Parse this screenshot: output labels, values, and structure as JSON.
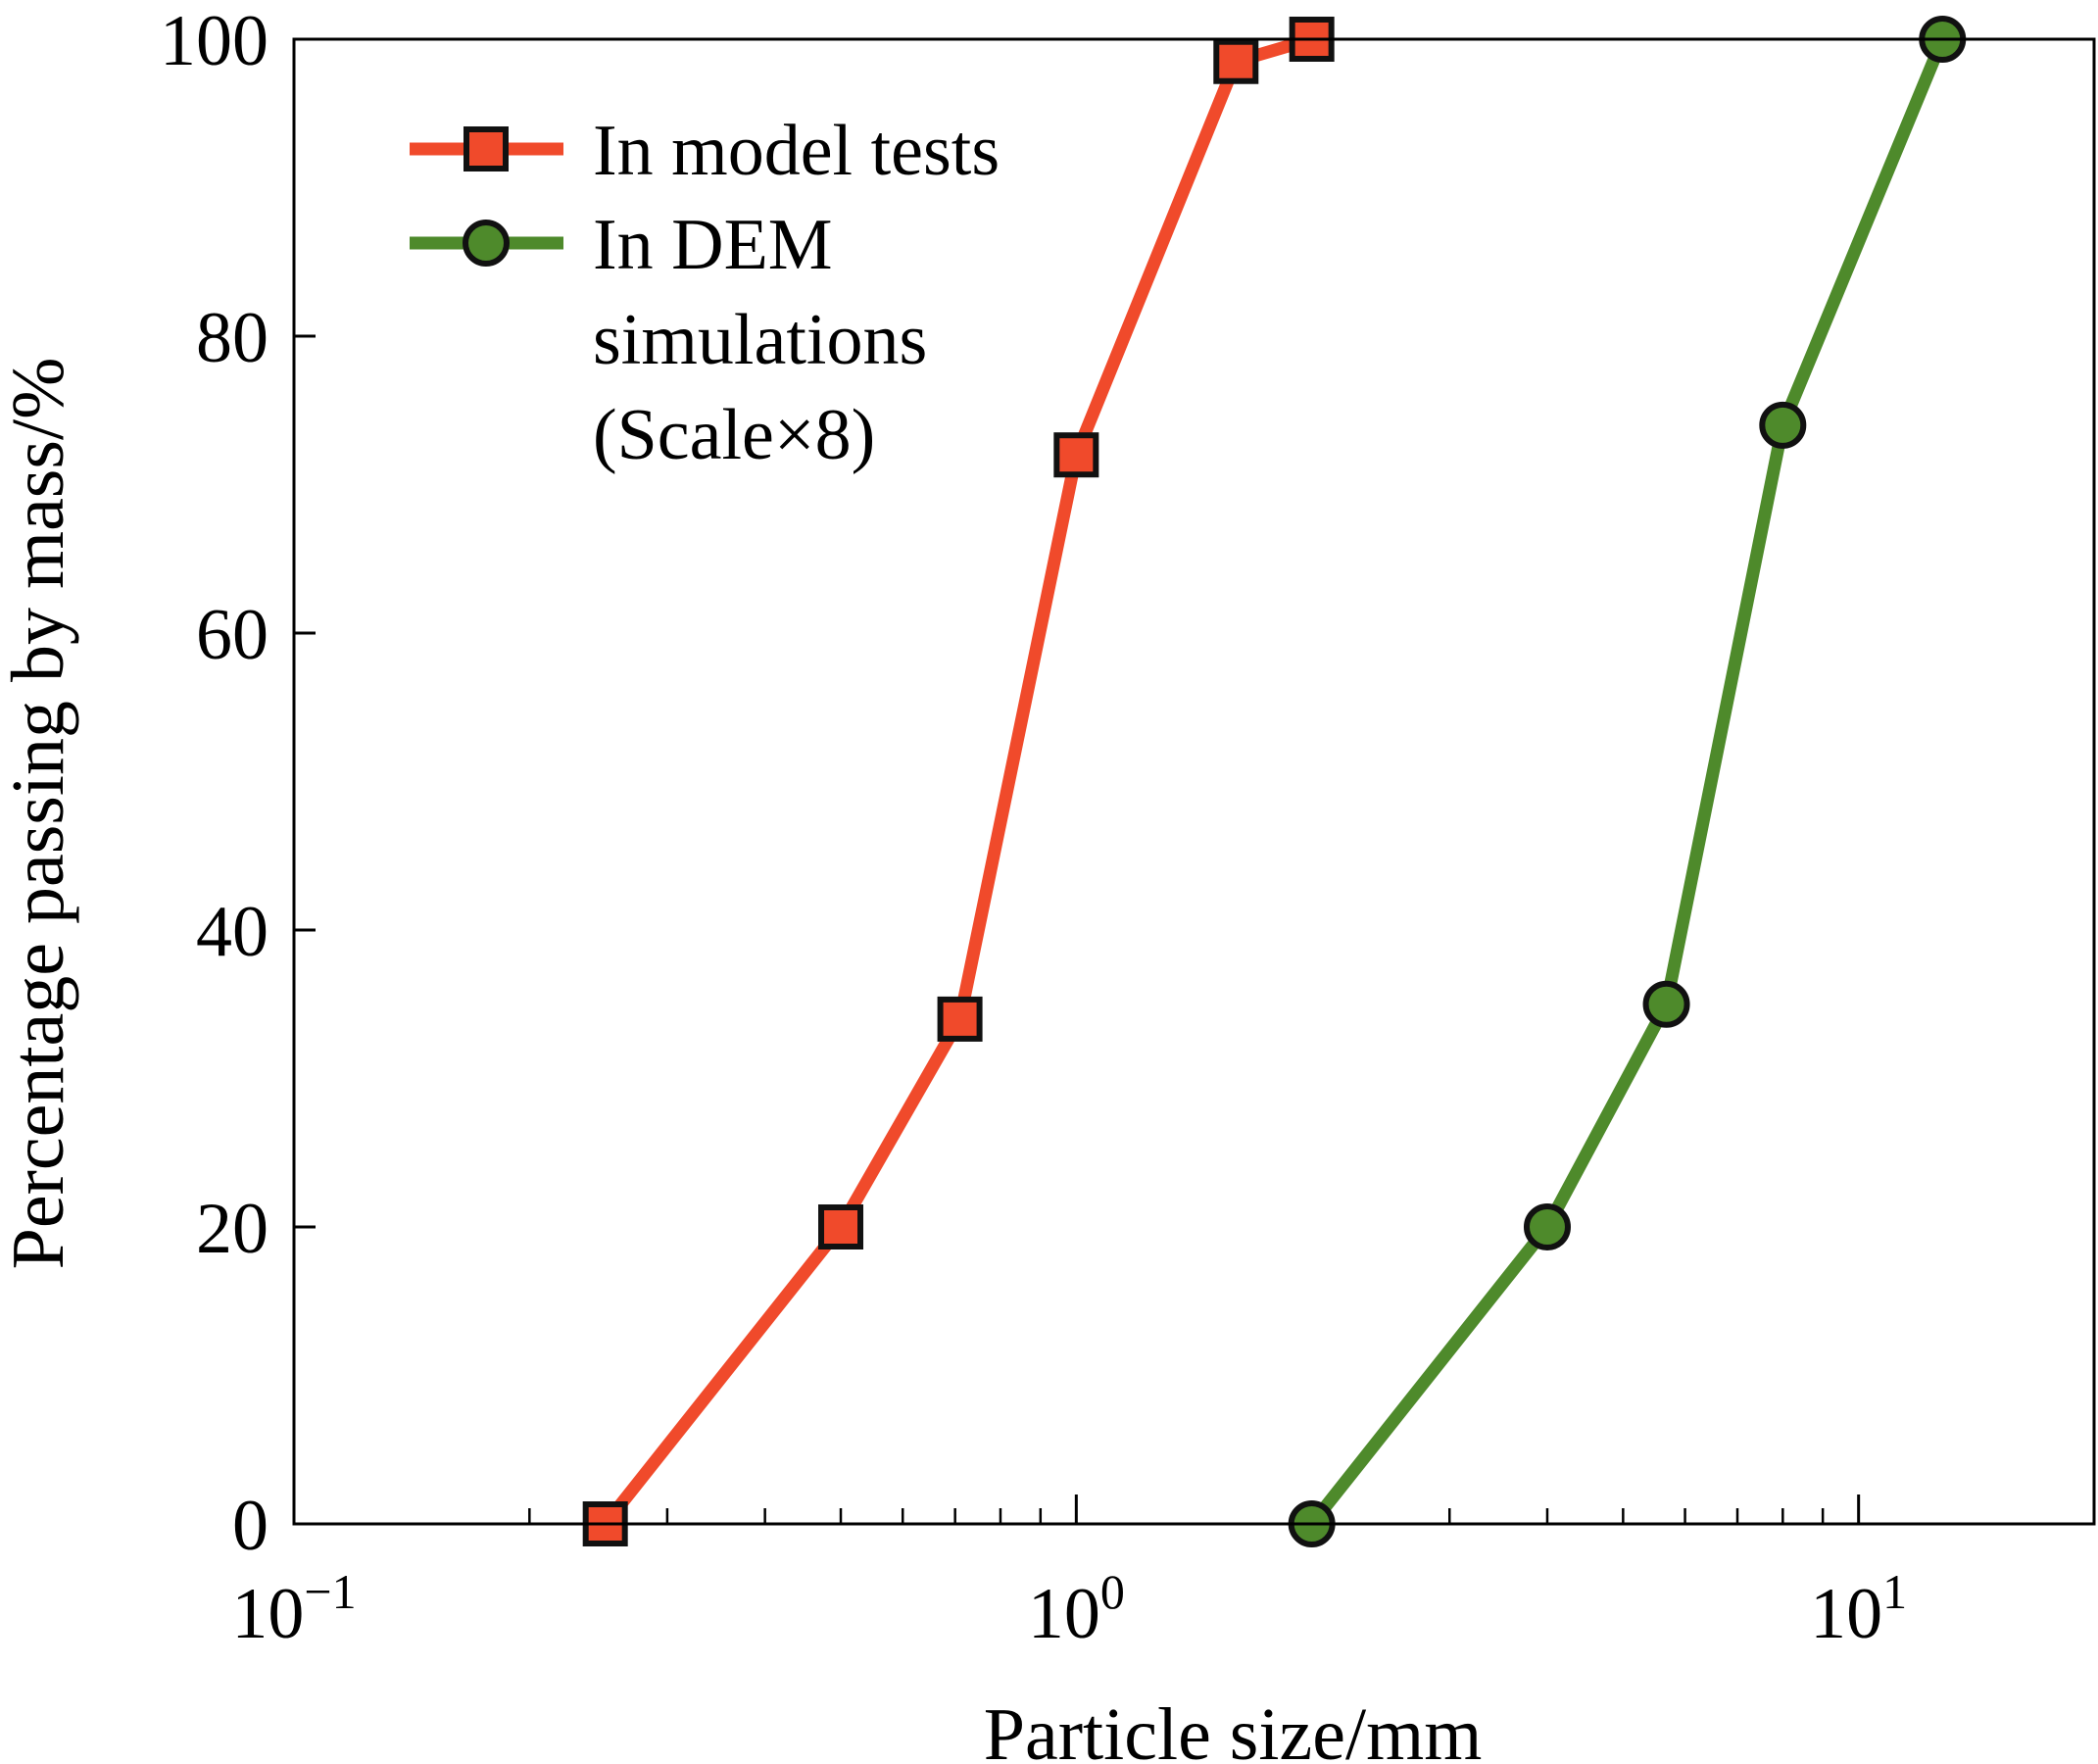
{
  "chart_data": {
    "type": "line",
    "xlabel": "Particle size/mm",
    "ylabel": "Percentage passing by mass/%",
    "x_scale": "log",
    "xlim": [
      0.1,
      20
    ],
    "ylim": [
      0,
      100
    ],
    "x_ticks": [
      0.1,
      1,
      10
    ],
    "x_tick_labels": [
      {
        "base": "10",
        "exp": "−1"
      },
      {
        "base": "10",
        "exp": "0"
      },
      {
        "base": "10",
        "exp": "1"
      }
    ],
    "y_ticks": [
      0,
      20,
      40,
      60,
      80,
      100
    ],
    "y_tick_labels": [
      "0",
      "20",
      "40",
      "60",
      "80",
      "100"
    ],
    "grid": false,
    "legend_position": "top-left",
    "series": [
      {
        "name": "In model tests",
        "color": "#f04a2b",
        "marker": "square",
        "x": [
          0.25,
          0.5,
          0.71,
          1.0,
          1.6,
          2.0
        ],
        "y": [
          0,
          20,
          34,
          72,
          98.5,
          100
        ]
      },
      {
        "name": "In DEM simulations (Scale×8)",
        "legend_lines": [
          "In DEM",
          "simulations",
          "(Scale×8)"
        ],
        "color": "#4e8a2b",
        "marker": "circle",
        "x": [
          2.0,
          4.0,
          5.68,
          8.0,
          12.8
        ],
        "y": [
          0,
          20,
          35,
          74,
          100
        ]
      }
    ]
  }
}
